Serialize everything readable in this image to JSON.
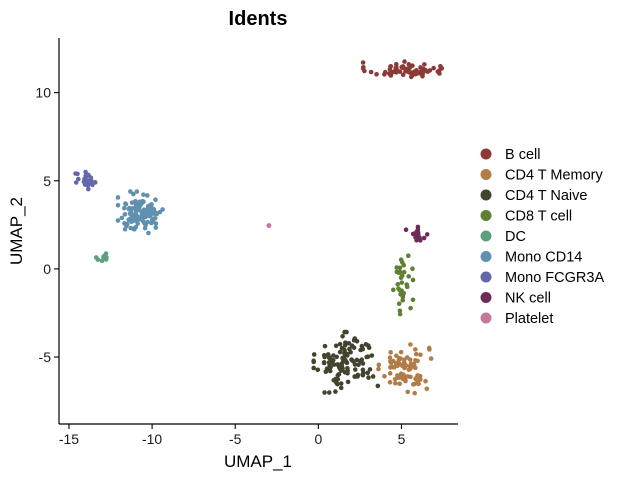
{
  "chart_data": {
    "type": "scatter",
    "title": "Idents",
    "xlabel": "UMAP_1",
    "ylabel": "UMAP_2",
    "xlim": [
      -15.6,
      8.4
    ],
    "ylim": [
      -8.8,
      13.1
    ],
    "xticks": [
      -15,
      -10,
      -5,
      0,
      5
    ],
    "yticks": [
      10,
      5,
      0,
      -5
    ],
    "xtick_labels": [
      "-15",
      "-10",
      "-5",
      "0",
      "5"
    ],
    "ytick_labels": [
      "10",
      "5",
      "0",
      "-5"
    ],
    "legend_position": "right",
    "series": [
      {
        "name": "B cell",
        "color": "#8B3A36",
        "center": [
          5.2,
          11.3
        ],
        "spread": [
          1.9,
          0.35
        ],
        "count": 65
      },
      {
        "name": "CD4 T Memory",
        "color": "#B07D4A",
        "center": [
          5.2,
          -5.6
        ],
        "spread": [
          1.2,
          1.1
        ],
        "count": 80
      },
      {
        "name": "CD4 T Naive",
        "color": "#44432F",
        "center": [
          1.7,
          -5.3
        ],
        "spread": [
          1.5,
          1.3
        ],
        "count": 115
      },
      {
        "name": "CD8 T cell",
        "color": "#5F7F33",
        "center": [
          5.1,
          -0.9
        ],
        "spread": [
          0.45,
          1.4
        ],
        "count": 34
      },
      {
        "name": "DC",
        "color": "#5EA07E",
        "center": [
          -12.9,
          0.7
        ],
        "spread": [
          0.35,
          0.3
        ],
        "count": 10
      },
      {
        "name": "Mono CD14",
        "color": "#6090B0",
        "center": [
          -10.6,
          3.2
        ],
        "spread": [
          1.1,
          0.9
        ],
        "count": 115
      },
      {
        "name": "Mono FCGR3A",
        "color": "#6367AA",
        "center": [
          -14.0,
          4.9
        ],
        "spread": [
          0.55,
          0.45
        ],
        "count": 22
      },
      {
        "name": "NK cell",
        "color": "#6E2A58",
        "center": [
          6.0,
          2.0
        ],
        "spread": [
          0.55,
          0.35
        ],
        "count": 22
      },
      {
        "name": "Platelet",
        "color": "#C6789C",
        "center": [
          -3.0,
          2.45
        ],
        "spread": [
          0.06,
          0.04
        ],
        "count": 3
      }
    ]
  }
}
